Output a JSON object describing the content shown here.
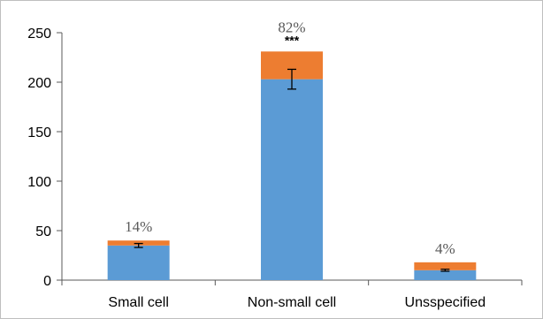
{
  "chart_data": {
    "type": "bar",
    "stacked": true,
    "categories": [
      "Small cell",
      "Non-small cell",
      "Unsspecified"
    ],
    "series": [
      {
        "values": [
          35,
          203,
          10
        ],
        "color": "#5b9bd5"
      },
      {
        "values": [
          5,
          28,
          8
        ],
        "color": "#ed7d31"
      }
    ],
    "error_bars": [
      {
        "center": 35,
        "low": 33,
        "high": 37
      },
      {
        "center": 203,
        "low": 193,
        "high": 213
      },
      {
        "center": 10,
        "low": 9,
        "high": 11
      }
    ],
    "percent_labels": [
      "14%",
      "82%",
      "4%"
    ],
    "significance_labels": [
      "",
      "***",
      ""
    ],
    "ylim": [
      0,
      250
    ],
    "yticks": [
      0,
      50,
      100,
      150,
      200,
      250
    ],
    "title": "",
    "xlabel": "",
    "ylabel": "",
    "grid": false,
    "legend": false
  }
}
